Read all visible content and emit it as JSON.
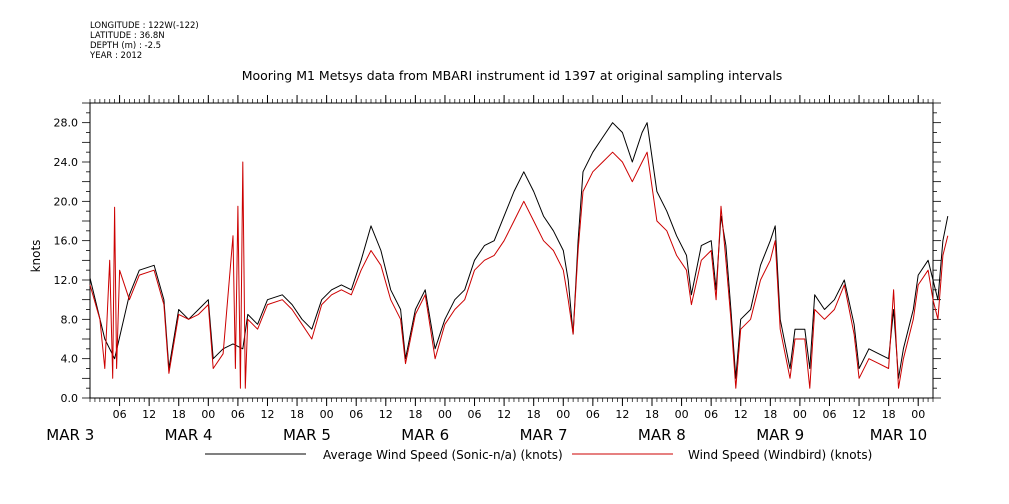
{
  "meta": {
    "longitude": "LONGITUDE : 122W(-122)",
    "latitude": "LATITUDE : 36.8N",
    "depth": "DEPTH (m) : -2.5",
    "year": "YEAR : 2012"
  },
  "chart_data": {
    "type": "line",
    "title": "Mooring M1 Metsys data from MBARI instrument id 1397 at original sampling intervals",
    "ylabel": "knots",
    "xlabel": "",
    "ylim": [
      0,
      30
    ],
    "yticks": [
      "0.0",
      "4.0",
      "8.0",
      "12.0",
      "16.0",
      "20.0",
      "24.0",
      "28.0"
    ],
    "xlim_hours": [
      0,
      171
    ],
    "hour_tick_labels": [
      "06",
      "12",
      "18",
      "00",
      "06",
      "12",
      "18",
      "00",
      "06",
      "12",
      "18",
      "00",
      "06",
      "12",
      "18",
      "00",
      "06",
      "12",
      "18",
      "00",
      "06",
      "12",
      "18",
      "00",
      "06",
      "12",
      "18",
      "00"
    ],
    "day_labels": [
      "MAR  3",
      "MAR  4",
      "MAR  5",
      "MAR  6",
      "MAR  7",
      "MAR  8",
      "MAR  9",
      "MAR 10"
    ],
    "grid": false,
    "legend_placement": "bottom",
    "series": [
      {
        "name": "Average Wind Speed (Sonic-n/a) (knots)",
        "color": "#000000",
        "points": [
          [
            0,
            12.2
          ],
          [
            3,
            6
          ],
          [
            5,
            4
          ],
          [
            8,
            10.5
          ],
          [
            10,
            13
          ],
          [
            13,
            13.5
          ],
          [
            15,
            10
          ],
          [
            16,
            3
          ],
          [
            18,
            9
          ],
          [
            20,
            8
          ],
          [
            22,
            9
          ],
          [
            24,
            10
          ],
          [
            25,
            4
          ],
          [
            27,
            5
          ],
          [
            29,
            5.5
          ],
          [
            31,
            5
          ],
          [
            32,
            8.5
          ],
          [
            34,
            7.5
          ],
          [
            36,
            10
          ],
          [
            39,
            10.5
          ],
          [
            41,
            9.5
          ],
          [
            43,
            8
          ],
          [
            45,
            7
          ],
          [
            47,
            10
          ],
          [
            49,
            11
          ],
          [
            51,
            11.5
          ],
          [
            53,
            11
          ],
          [
            55,
            14
          ],
          [
            57,
            17.5
          ],
          [
            59,
            15
          ],
          [
            61,
            11
          ],
          [
            63,
            9
          ],
          [
            64,
            4
          ],
          [
            66,
            9
          ],
          [
            68,
            11
          ],
          [
            70,
            5
          ],
          [
            72,
            8
          ],
          [
            74,
            10
          ],
          [
            76,
            11
          ],
          [
            78,
            14
          ],
          [
            80,
            15.5
          ],
          [
            82,
            16
          ],
          [
            84,
            18.5
          ],
          [
            86,
            21
          ],
          [
            88,
            23
          ],
          [
            90,
            21
          ],
          [
            92,
            18.5
          ],
          [
            94,
            17
          ],
          [
            96,
            15
          ],
          [
            97,
            12
          ],
          [
            98,
            6.5
          ],
          [
            99,
            16
          ],
          [
            100,
            23
          ],
          [
            102,
            25
          ],
          [
            104,
            26.5
          ],
          [
            106,
            28
          ],
          [
            108,
            27
          ],
          [
            110,
            24
          ],
          [
            112,
            27
          ],
          [
            113,
            28
          ],
          [
            115,
            21
          ],
          [
            117,
            19
          ],
          [
            119,
            16.5
          ],
          [
            121,
            14.5
          ],
          [
            122,
            10.5
          ],
          [
            124,
            15.5
          ],
          [
            126,
            16
          ],
          [
            127,
            11
          ],
          [
            128,
            18.5
          ],
          [
            129,
            15.5
          ],
          [
            130,
            9
          ],
          [
            131,
            2
          ],
          [
            132,
            8
          ],
          [
            134,
            9
          ],
          [
            136,
            13.5
          ],
          [
            138,
            16
          ],
          [
            139,
            17.5
          ],
          [
            140,
            8
          ],
          [
            142,
            3
          ],
          [
            143,
            7
          ],
          [
            145,
            7
          ],
          [
            146,
            3
          ],
          [
            147,
            10.5
          ],
          [
            149,
            9
          ],
          [
            151,
            10
          ],
          [
            153,
            12
          ],
          [
            155,
            7.5
          ],
          [
            156,
            3
          ],
          [
            158,
            5
          ],
          [
            160,
            4.5
          ],
          [
            162,
            4
          ],
          [
            163,
            9
          ],
          [
            164,
            2
          ],
          [
            165,
            5
          ],
          [
            167,
            9
          ],
          [
            168,
            12.5
          ],
          [
            170,
            14
          ],
          [
            171,
            12
          ],
          [
            172,
            10
          ],
          [
            173,
            16
          ],
          [
            174,
            18.5
          ]
        ]
      },
      {
        "name": "Wind Speed (Windbird) (knots)",
        "color": "#cc0000",
        "points": [
          [
            0,
            11.5
          ],
          [
            2,
            8
          ],
          [
            3,
            3
          ],
          [
            4,
            14
          ],
          [
            4.6,
            2
          ],
          [
            5,
            19.4
          ],
          [
            5.4,
            3
          ],
          [
            6,
            13
          ],
          [
            8,
            10
          ],
          [
            10,
            12.5
          ],
          [
            13,
            13
          ],
          [
            15,
            9.5
          ],
          [
            16,
            2.5
          ],
          [
            18,
            8.5
          ],
          [
            20,
            8
          ],
          [
            22,
            8.5
          ],
          [
            24,
            9.5
          ],
          [
            25,
            3
          ],
          [
            27,
            4.5
          ],
          [
            29,
            16.5
          ],
          [
            29.5,
            3
          ],
          [
            30,
            19.5
          ],
          [
            30.5,
            1
          ],
          [
            31,
            24
          ],
          [
            31.5,
            1
          ],
          [
            32,
            8
          ],
          [
            34,
            7
          ],
          [
            36,
            9.5
          ],
          [
            39,
            10
          ],
          [
            41,
            9
          ],
          [
            43,
            7.5
          ],
          [
            45,
            6
          ],
          [
            47,
            9.5
          ],
          [
            49,
            10.5
          ],
          [
            51,
            11
          ],
          [
            53,
            10.5
          ],
          [
            55,
            13
          ],
          [
            57,
            15
          ],
          [
            59,
            13.5
          ],
          [
            61,
            10
          ],
          [
            63,
            8
          ],
          [
            64,
            3.5
          ],
          [
            66,
            8.5
          ],
          [
            68,
            10.5
          ],
          [
            70,
            4
          ],
          [
            72,
            7.5
          ],
          [
            74,
            9
          ],
          [
            76,
            10
          ],
          [
            78,
            13
          ],
          [
            80,
            14
          ],
          [
            82,
            14.5
          ],
          [
            84,
            16
          ],
          [
            86,
            18
          ],
          [
            88,
            20
          ],
          [
            90,
            18
          ],
          [
            92,
            16
          ],
          [
            94,
            15
          ],
          [
            96,
            13
          ],
          [
            97,
            10
          ],
          [
            98,
            6.5
          ],
          [
            99,
            15
          ],
          [
            100,
            21
          ],
          [
            102,
            23
          ],
          [
            104,
            24
          ],
          [
            106,
            25
          ],
          [
            108,
            24
          ],
          [
            110,
            22
          ],
          [
            112,
            24
          ],
          [
            113,
            25
          ],
          [
            115,
            18
          ],
          [
            117,
            17
          ],
          [
            119,
            14.5
          ],
          [
            121,
            13
          ],
          [
            122,
            9.5
          ],
          [
            124,
            14
          ],
          [
            126,
            15
          ],
          [
            127,
            10
          ],
          [
            128,
            19.5
          ],
          [
            129,
            14
          ],
          [
            130,
            8
          ],
          [
            131,
            1
          ],
          [
            132,
            7
          ],
          [
            134,
            8
          ],
          [
            136,
            12
          ],
          [
            138,
            14
          ],
          [
            139,
            16
          ],
          [
            140,
            7
          ],
          [
            142,
            2
          ],
          [
            143,
            6
          ],
          [
            145,
            6
          ],
          [
            146,
            1
          ],
          [
            147,
            9
          ],
          [
            149,
            8
          ],
          [
            151,
            9
          ],
          [
            153,
            11.5
          ],
          [
            155,
            6.5
          ],
          [
            156,
            2
          ],
          [
            158,
            4
          ],
          [
            160,
            3.5
          ],
          [
            162,
            3
          ],
          [
            163,
            11
          ],
          [
            164,
            1
          ],
          [
            165,
            4
          ],
          [
            167,
            8
          ],
          [
            168,
            11.5
          ],
          [
            170,
            13
          ],
          [
            171,
            10
          ],
          [
            172,
            8
          ],
          [
            173,
            14.5
          ],
          [
            174,
            16.5
          ]
        ]
      }
    ]
  }
}
